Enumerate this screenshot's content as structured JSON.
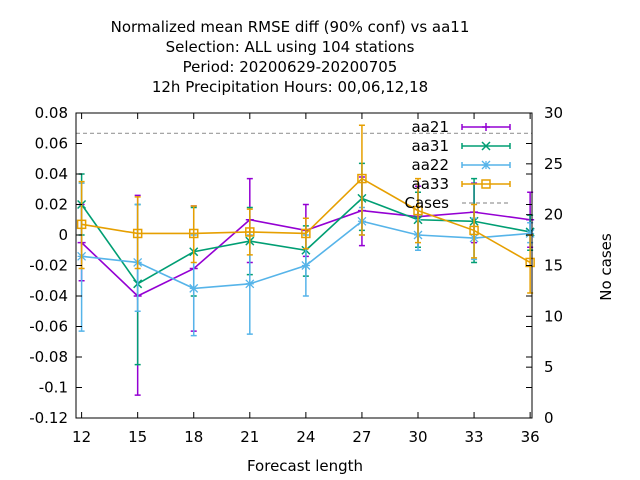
{
  "chart_data": {
    "type": "line",
    "title_lines": [
      "Normalized mean RMSE diff (90% conf) vs aa11",
      "Selection: ALL using   104 stations",
      "Period: 20200629-20200705",
      "12h Precipitation   Hours:  00,06,12,18"
    ],
    "xlabel": "Forecast length",
    "y2label": "No cases",
    "x": [
      12,
      15,
      18,
      21,
      24,
      27,
      30,
      33,
      36
    ],
    "xlim": [
      11.7,
      36.1
    ],
    "ylim": [
      -0.12,
      0.08
    ],
    "y2lim": [
      0,
      30
    ],
    "xticks": [
      12,
      15,
      18,
      21,
      24,
      27,
      30,
      33,
      36
    ],
    "yticks": [
      -0.12,
      -0.1,
      -0.08,
      -0.06,
      -0.04,
      -0.02,
      0,
      0.02,
      0.04,
      0.06,
      0.08
    ],
    "ytick_labels": [
      "-0.12",
      "-0.1",
      "-0.08",
      "-0.06",
      "-0.04",
      "-0.02",
      "0",
      "0.02",
      "0.04",
      "0.06",
      "0.08"
    ],
    "y2ticks": [
      0,
      5,
      10,
      15,
      20,
      25,
      30
    ],
    "legend_position": "top-right",
    "series": [
      {
        "name": "aa21",
        "color": "#9400d3",
        "marker": "plus",
        "offset": 0,
        "values": [
          -0.005,
          -0.04,
          -0.022,
          0.01,
          0.003,
          0.016,
          0.012,
          0.015,
          0.01
        ],
        "lower": [
          -0.03,
          -0.105,
          -0.063,
          -0.018,
          -0.014,
          -0.007,
          -0.008,
          -0.005,
          -0.008
        ],
        "upper": [
          0.02,
          0.026,
          0.019,
          0.037,
          0.02,
          0.038,
          0.032,
          0.034,
          0.028
        ]
      },
      {
        "name": "aa31",
        "color": "#009e73",
        "marker": "cross",
        "offset": 0,
        "values": [
          0.02,
          -0.032,
          -0.011,
          -0.004,
          -0.01,
          0.024,
          0.01,
          0.009,
          0.002
        ],
        "lower": [
          0.0,
          -0.085,
          -0.04,
          -0.026,
          -0.027,
          0.003,
          -0.008,
          -0.018,
          -0.01
        ],
        "upper": [
          0.04,
          0.02,
          0.018,
          0.018,
          0.006,
          0.047,
          0.028,
          0.037,
          0.013
        ]
      },
      {
        "name": "aa22",
        "color": "#56b4e9",
        "marker": "star",
        "offset": 0,
        "values": [
          -0.014,
          -0.018,
          -0.035,
          -0.032,
          -0.02,
          0.009,
          0.0,
          -0.002,
          0.001
        ],
        "lower": [
          -0.063,
          -0.05,
          -0.066,
          -0.065,
          -0.04,
          0.0,
          -0.01,
          -0.016,
          -0.005
        ],
        "upper": [
          0.034,
          0.02,
          0.0,
          0.0,
          0.0,
          0.018,
          0.01,
          0.011,
          0.008
        ]
      },
      {
        "name": "aa33",
        "color": "#e69f00",
        "marker": "square",
        "offset": 0,
        "values": [
          0.007,
          0.001,
          0.001,
          0.002,
          0.001,
          0.037,
          0.016,
          0.003,
          -0.018
        ],
        "lower": [
          -0.022,
          -0.022,
          -0.018,
          -0.013,
          -0.009,
          0.0,
          -0.005,
          -0.015,
          -0.038
        ],
        "upper": [
          0.035,
          0.025,
          0.019,
          0.017,
          0.011,
          0.072,
          0.037,
          0.02,
          0.0
        ]
      }
    ],
    "cases": {
      "name": "Cases",
      "color": "#999999",
      "value": 28
    }
  }
}
